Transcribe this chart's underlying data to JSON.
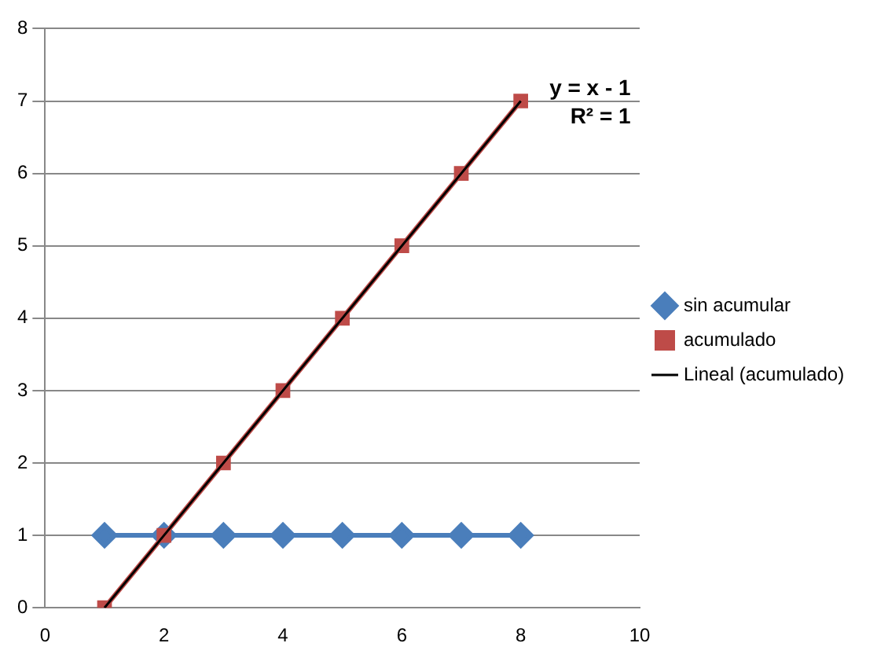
{
  "chart_data": {
    "type": "line",
    "x": [
      1,
      2,
      3,
      4,
      5,
      6,
      7,
      8
    ],
    "series": [
      {
        "name": "sin acumular",
        "color": "#4a7ebb",
        "values": [
          1,
          1,
          1,
          1,
          1,
          1,
          1,
          1
        ],
        "marker": "diamond"
      },
      {
        "name": "acumulado",
        "color": "#be4b48",
        "values": [
          0,
          1,
          2,
          3,
          4,
          5,
          6,
          7
        ],
        "marker": "square"
      },
      {
        "name": "Lineal (acumulado)",
        "color": "#000000",
        "x": [
          1,
          8
        ],
        "values": [
          0,
          7
        ],
        "marker": "none"
      }
    ],
    "xlim": [
      0,
      10
    ],
    "xticks": [
      0,
      2,
      4,
      6,
      8,
      10
    ],
    "ylim": [
      0,
      8
    ],
    "yticks": [
      0,
      1,
      2,
      3,
      4,
      5,
      6,
      7,
      8
    ],
    "grid": "y",
    "legend": "right",
    "line_style": "solid",
    "annotations": [
      "y = x - 1",
      "R² = 1"
    ]
  }
}
